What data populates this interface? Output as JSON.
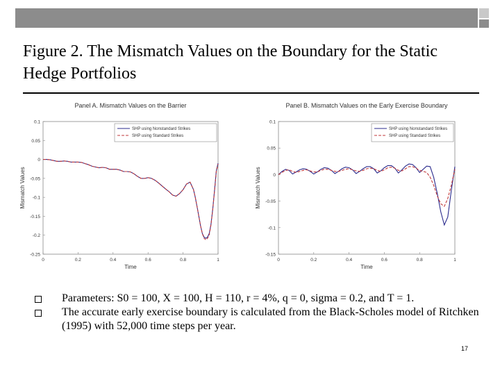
{
  "slide": {
    "title": "Figure 2. The Mismatch Values on the Boundary for the Static Hedge Portfolios",
    "bullets": [
      "Parameters: S0 = 100, X = 100, H = 110, r = 4%, q = 0, sigma = 0.2, and T = 1.",
      "The accurate early exercise boundary is calculated from the Black-Scholes model of Ritchken (1995) with 52,000 time steps per year."
    ],
    "page_number": "17"
  },
  "colors": {
    "series_1": "#2a2a8c",
    "series_2": "#c0393b",
    "header_bar": "#8c8c8c"
  },
  "chart_data": [
    {
      "type": "line",
      "title": "Panel A. Mismatch Values on the Barrier",
      "xlabel": "Time",
      "ylabel": "Mismatch Values",
      "xlim": [
        0,
        1
      ],
      "ylim": [
        -0.25,
        0.1
      ],
      "xticks": [
        "0",
        "0.2",
        "0.4",
        "0.6",
        "0.8",
        "1"
      ],
      "yticks": [
        "0.1",
        "0.05",
        "0",
        "-0.05",
        "-0.1",
        "-0.15",
        "-0.2",
        "-0.25"
      ],
      "grid": false,
      "legend_position": "top-right",
      "series": [
        {
          "name": "SHP using Nonstandard Strikes",
          "x": [
            0,
            0.02,
            0.04,
            0.06,
            0.08,
            0.1,
            0.12,
            0.14,
            0.16,
            0.18,
            0.2,
            0.22,
            0.24,
            0.26,
            0.28,
            0.3,
            0.32,
            0.34,
            0.36,
            0.38,
            0.4,
            0.42,
            0.44,
            0.46,
            0.48,
            0.5,
            0.52,
            0.54,
            0.56,
            0.58,
            0.6,
            0.62,
            0.64,
            0.66,
            0.68,
            0.7,
            0.72,
            0.74,
            0.76,
            0.78,
            0.8,
            0.82,
            0.84,
            0.86,
            0.87,
            0.88,
            0.89,
            0.9,
            0.91,
            0.92,
            0.93,
            0.94,
            0.95,
            0.96,
            0.97,
            0.98,
            0.99,
            1
          ],
          "y": [
            0,
            0,
            -0.001,
            -0.003,
            -0.005,
            -0.005,
            -0.004,
            -0.005,
            -0.007,
            -0.007,
            -0.007,
            -0.008,
            -0.011,
            -0.014,
            -0.018,
            -0.02,
            -0.022,
            -0.021,
            -0.022,
            -0.026,
            -0.026,
            -0.026,
            -0.028,
            -0.032,
            -0.032,
            -0.033,
            -0.038,
            -0.045,
            -0.05,
            -0.05,
            -0.048,
            -0.05,
            -0.055,
            -0.062,
            -0.07,
            -0.078,
            -0.085,
            -0.094,
            -0.097,
            -0.09,
            -0.08,
            -0.065,
            -0.06,
            -0.08,
            -0.1,
            -0.125,
            -0.15,
            -0.175,
            -0.195,
            -0.205,
            -0.208,
            -0.205,
            -0.195,
            -0.17,
            -0.13,
            -0.08,
            -0.03,
            -0.01
          ]
        },
        {
          "name": "SHP using Standard Strikes",
          "x": [
            0,
            0.02,
            0.04,
            0.06,
            0.08,
            0.1,
            0.12,
            0.14,
            0.16,
            0.18,
            0.2,
            0.22,
            0.24,
            0.26,
            0.28,
            0.3,
            0.32,
            0.34,
            0.36,
            0.38,
            0.4,
            0.42,
            0.44,
            0.46,
            0.48,
            0.5,
            0.52,
            0.54,
            0.56,
            0.58,
            0.6,
            0.62,
            0.64,
            0.66,
            0.68,
            0.7,
            0.72,
            0.74,
            0.76,
            0.78,
            0.8,
            0.82,
            0.84,
            0.86,
            0.87,
            0.88,
            0.89,
            0.9,
            0.91,
            0.92,
            0.93,
            0.94,
            0.95,
            0.96,
            0.97,
            0.98,
            0.99,
            1
          ],
          "y": [
            0,
            0,
            -0.001,
            -0.003,
            -0.005,
            -0.005,
            -0.004,
            -0.005,
            -0.007,
            -0.007,
            -0.007,
            -0.008,
            -0.011,
            -0.014,
            -0.018,
            -0.02,
            -0.022,
            -0.021,
            -0.022,
            -0.026,
            -0.026,
            -0.026,
            -0.028,
            -0.032,
            -0.032,
            -0.033,
            -0.038,
            -0.045,
            -0.05,
            -0.05,
            -0.048,
            -0.05,
            -0.055,
            -0.062,
            -0.07,
            -0.078,
            -0.085,
            -0.094,
            -0.097,
            -0.09,
            -0.08,
            -0.065,
            -0.06,
            -0.08,
            -0.1,
            -0.125,
            -0.15,
            -0.175,
            -0.195,
            -0.208,
            -0.212,
            -0.208,
            -0.198,
            -0.172,
            -0.132,
            -0.082,
            -0.032,
            -0.012
          ]
        }
      ]
    },
    {
      "type": "line",
      "title": "Panel B. Mismatch Values on the Early Exercise Boundary",
      "xlabel": "Time",
      "ylabel": "Mismatch Values",
      "xlim": [
        0,
        1
      ],
      "ylim": [
        -0.15,
        0.1
      ],
      "xticks": [
        "0",
        "0.2",
        "0.4",
        "0.6",
        "0.8",
        "1"
      ],
      "yticks": [
        "0.1",
        "0.05",
        "0",
        "-0.05",
        "-0.1",
        "-0.15"
      ],
      "grid": false,
      "legend_position": "top-right",
      "series": [
        {
          "name": "SHP using Nonstandard Strikes",
          "x": [
            0,
            0.02,
            0.04,
            0.06,
            0.08,
            0.1,
            0.12,
            0.14,
            0.16,
            0.18,
            0.2,
            0.22,
            0.24,
            0.26,
            0.28,
            0.3,
            0.32,
            0.34,
            0.36,
            0.38,
            0.4,
            0.42,
            0.44,
            0.46,
            0.48,
            0.5,
            0.52,
            0.54,
            0.56,
            0.58,
            0.6,
            0.62,
            0.64,
            0.66,
            0.68,
            0.7,
            0.72,
            0.74,
            0.76,
            0.78,
            0.8,
            0.82,
            0.84,
            0.86,
            0.88,
            0.9,
            0.92,
            0.94,
            0.96,
            0.98,
            1
          ],
          "y": [
            0,
            0.006,
            0.01,
            0.008,
            0.001,
            0.005,
            0.009,
            0.011,
            0.01,
            0.006,
            0.001,
            0.005,
            0.01,
            0.013,
            0.012,
            0.008,
            0.002,
            0.006,
            0.011,
            0.014,
            0.013,
            0.009,
            0.002,
            0.006,
            0.011,
            0.015,
            0.015,
            0.011,
            0.003,
            0.007,
            0.013,
            0.017,
            0.017,
            0.012,
            0.003,
            0.009,
            0.016,
            0.02,
            0.019,
            0.013,
            0.004,
            0.01,
            0.016,
            0.015,
            -0.005,
            -0.035,
            -0.07,
            -0.095,
            -0.08,
            -0.03,
            0.015
          ]
        },
        {
          "name": "SHP using Standard Strikes",
          "x": [
            0,
            0.02,
            0.04,
            0.06,
            0.08,
            0.1,
            0.12,
            0.14,
            0.16,
            0.18,
            0.2,
            0.22,
            0.24,
            0.26,
            0.28,
            0.3,
            0.32,
            0.34,
            0.36,
            0.38,
            0.4,
            0.42,
            0.44,
            0.46,
            0.48,
            0.5,
            0.52,
            0.54,
            0.56,
            0.58,
            0.6,
            0.62,
            0.64,
            0.66,
            0.68,
            0.7,
            0.72,
            0.74,
            0.76,
            0.78,
            0.8,
            0.82,
            0.84,
            0.86,
            0.88,
            0.9,
            0.92,
            0.94,
            0.96,
            0.98,
            1
          ],
          "y": [
            0,
            0.004,
            0.008,
            0.009,
            0.006,
            0.004,
            0.006,
            0.008,
            0.009,
            0.007,
            0.005,
            0.005,
            0.008,
            0.01,
            0.01,
            0.008,
            0.006,
            0.006,
            0.008,
            0.01,
            0.011,
            0.009,
            0.007,
            0.006,
            0.008,
            0.011,
            0.012,
            0.011,
            0.008,
            0.006,
            0.009,
            0.013,
            0.014,
            0.012,
            0.008,
            0.007,
            0.011,
            0.015,
            0.015,
            0.012,
            0.008,
            0.006,
            0.004,
            -0.005,
            -0.02,
            -0.04,
            -0.055,
            -0.06,
            -0.045,
            -0.02,
            0.01
          ]
        }
      ]
    }
  ]
}
